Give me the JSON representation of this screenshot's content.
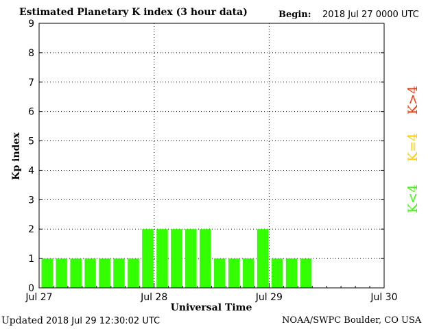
{
  "header": {
    "title": "Estimated Planetary K index (3 hour data)",
    "begin_label": "Begin:",
    "begin_value": "2018 Jul 27 0000 UTC"
  },
  "footer": {
    "updated_label": "Updated",
    "updated_value": "2018 Jul 29 12:30:02 UTC",
    "credit": "NOAA/SWPC Boulder, CO USA"
  },
  "chart_data": {
    "type": "bar",
    "title": "Estimated Planetary K index (3 hour data)",
    "xlabel": "Universal Time",
    "ylabel": "Kp index",
    "ylim": [
      0,
      9
    ],
    "y_ticks": [
      0,
      1,
      2,
      3,
      4,
      5,
      6,
      7,
      8,
      9
    ],
    "x_ticks": [
      "Jul 27",
      "Jul 28",
      "Jul 29",
      "Jul 30"
    ],
    "values": [
      1,
      1,
      1,
      1,
      1,
      1,
      1,
      2,
      2,
      2,
      2,
      2,
      1,
      1,
      1,
      2,
      1,
      1,
      1
    ],
    "bar_color": "#33ff00",
    "grid": true,
    "legend": [
      {
        "label": "K<4",
        "color": "#33ff00"
      },
      {
        "label": "K=4",
        "color": "#ffcc00"
      },
      {
        "label": "K>4",
        "color": "#ff3300"
      }
    ],
    "legend_position": "right"
  }
}
